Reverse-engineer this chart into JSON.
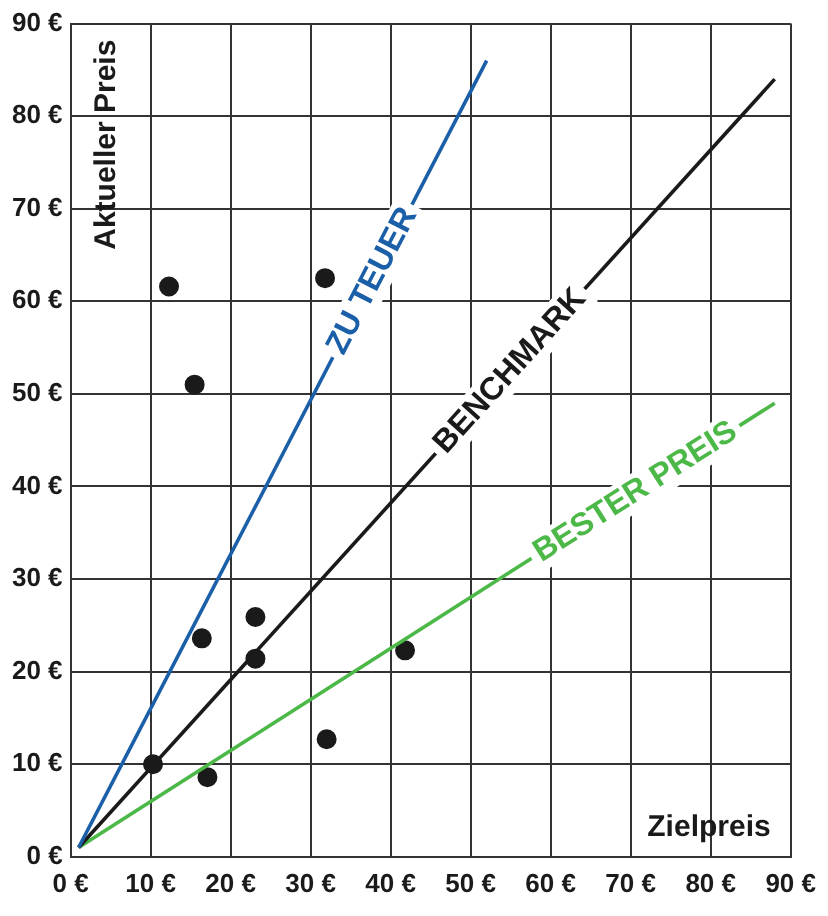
{
  "chart_data": {
    "type": "scatter",
    "xlabel": "Zielpreis",
    "ylabel": "Aktueller Preis",
    "xlim": [
      0,
      90
    ],
    "ylim": [
      0,
      90
    ],
    "xticks": [
      {
        "value": 0,
        "label": "0 €"
      },
      {
        "value": 10,
        "label": "10 €"
      },
      {
        "value": 20,
        "label": "20 €"
      },
      {
        "value": 30,
        "label": "30 €"
      },
      {
        "value": 40,
        "label": "40 €"
      },
      {
        "value": 50,
        "label": "50 €"
      },
      {
        "value": 60,
        "label": "60 €"
      },
      {
        "value": 70,
        "label": "70 €"
      },
      {
        "value": 80,
        "label": "80 €"
      },
      {
        "value": 90,
        "label": "90 €"
      }
    ],
    "yticks": [
      {
        "value": 0,
        "label": "0 €"
      },
      {
        "value": 10,
        "label": "10 €"
      },
      {
        "value": 20,
        "label": "20 €"
      },
      {
        "value": 30,
        "label": "30 €"
      },
      {
        "value": 40,
        "label": "40 €"
      },
      {
        "value": 50,
        "label": "50 €"
      },
      {
        "value": 60,
        "label": "60 €"
      },
      {
        "value": 70,
        "label": "70 €"
      },
      {
        "value": 80,
        "label": "80 €"
      },
      {
        "value": 90,
        "label": "90 €"
      }
    ],
    "grid": true,
    "legend": false,
    "marker": "circle",
    "series": [
      {
        "type": "line",
        "name": "ZU TEUER",
        "color": "#1a5fa8",
        "x": [
          1,
          52
        ],
        "values": [
          1,
          86
        ],
        "marker": "none"
      },
      {
        "type": "line",
        "name": "BENCHMARK",
        "color": "#1a1a1a",
        "x": [
          1,
          88
        ],
        "values": [
          1,
          84
        ],
        "marker": "none"
      },
      {
        "type": "line",
        "name": "BESTER PREIS",
        "color": "#4cb848",
        "x": [
          1,
          88
        ],
        "values": [
          1,
          49
        ],
        "marker": "none"
      },
      {
        "type": "scatter",
        "color": "#1a1a1a",
        "x": [
          12.3,
          15.5,
          31.8,
          16.4,
          23.1,
          23.1,
          10.3,
          17.1,
          32,
          41.8
        ],
        "values": [
          61.6,
          51,
          62.5,
          23.6,
          25.9,
          21.4,
          10,
          8.6,
          12.7,
          22.3
        ]
      }
    ]
  }
}
